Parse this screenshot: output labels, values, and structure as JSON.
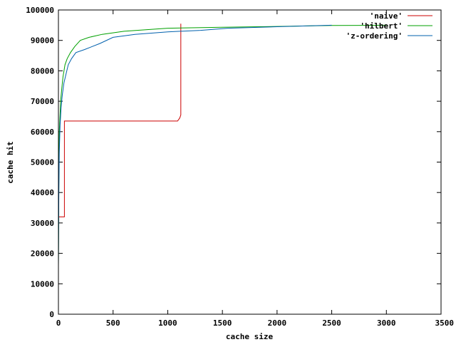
{
  "chart_data": {
    "type": "line",
    "title": "",
    "xlabel": "cache size",
    "ylabel": "cache hit",
    "xlim": [
      0,
      3500
    ],
    "ylim": [
      0,
      100000
    ],
    "x_ticks": [
      0,
      500,
      1000,
      1500,
      2000,
      2500,
      3000,
      3500
    ],
    "y_ticks": [
      0,
      10000,
      20000,
      30000,
      40000,
      50000,
      60000,
      70000,
      80000,
      90000,
      100000
    ],
    "x_tick_labels": [
      "0",
      "500",
      "1000",
      "1500",
      "2000",
      "2500",
      "3000",
      "3500"
    ],
    "y_tick_labels": [
      "0",
      "10000",
      "20000",
      "30000",
      "40000",
      "50000",
      "60000",
      "70000",
      "80000",
      "90000",
      "100000"
    ],
    "legend_position": "top-right",
    "grid": false,
    "series": [
      {
        "name": "'naive'",
        "color": "#cc0000",
        "points": [
          [
            0,
            32000
          ],
          [
            55,
            32000
          ],
          [
            55,
            63500
          ],
          [
            1090,
            63500
          ],
          [
            1110,
            64500
          ],
          [
            1120,
            65500
          ],
          [
            1120,
            95500
          ]
        ]
      },
      {
        "name": "'hilbert'",
        "color": "#00a000",
        "points": [
          [
            0,
            16000
          ],
          [
            4,
            43000
          ],
          [
            8,
            60000
          ],
          [
            12,
            63000
          ],
          [
            20,
            70000
          ],
          [
            30,
            74000
          ],
          [
            42,
            78000
          ],
          [
            60,
            82000
          ],
          [
            80,
            84000
          ],
          [
            110,
            86000
          ],
          [
            150,
            88000
          ],
          [
            200,
            90000
          ],
          [
            280,
            91000
          ],
          [
            400,
            92000
          ],
          [
            600,
            93000
          ],
          [
            800,
            93500
          ],
          [
            1000,
            94000
          ],
          [
            1500,
            94300
          ],
          [
            2000,
            94600
          ],
          [
            2500,
            94900
          ],
          [
            3000,
            95000
          ]
        ]
      },
      {
        "name": "'z-ordering'",
        "color": "#0060ad",
        "points": [
          [
            0,
            16000
          ],
          [
            4,
            40000
          ],
          [
            8,
            53000
          ],
          [
            15,
            62000
          ],
          [
            25,
            68000
          ],
          [
            35,
            72000
          ],
          [
            50,
            76000
          ],
          [
            70,
            79000
          ],
          [
            90,
            82000
          ],
          [
            120,
            84000
          ],
          [
            160,
            86000
          ],
          [
            240,
            87000
          ],
          [
            380,
            89000
          ],
          [
            500,
            91000
          ],
          [
            700,
            92000
          ],
          [
            1000,
            92800
          ],
          [
            1300,
            93300
          ],
          [
            1550,
            94000
          ],
          [
            2000,
            94500
          ],
          [
            2500,
            95000
          ]
        ]
      }
    ]
  }
}
